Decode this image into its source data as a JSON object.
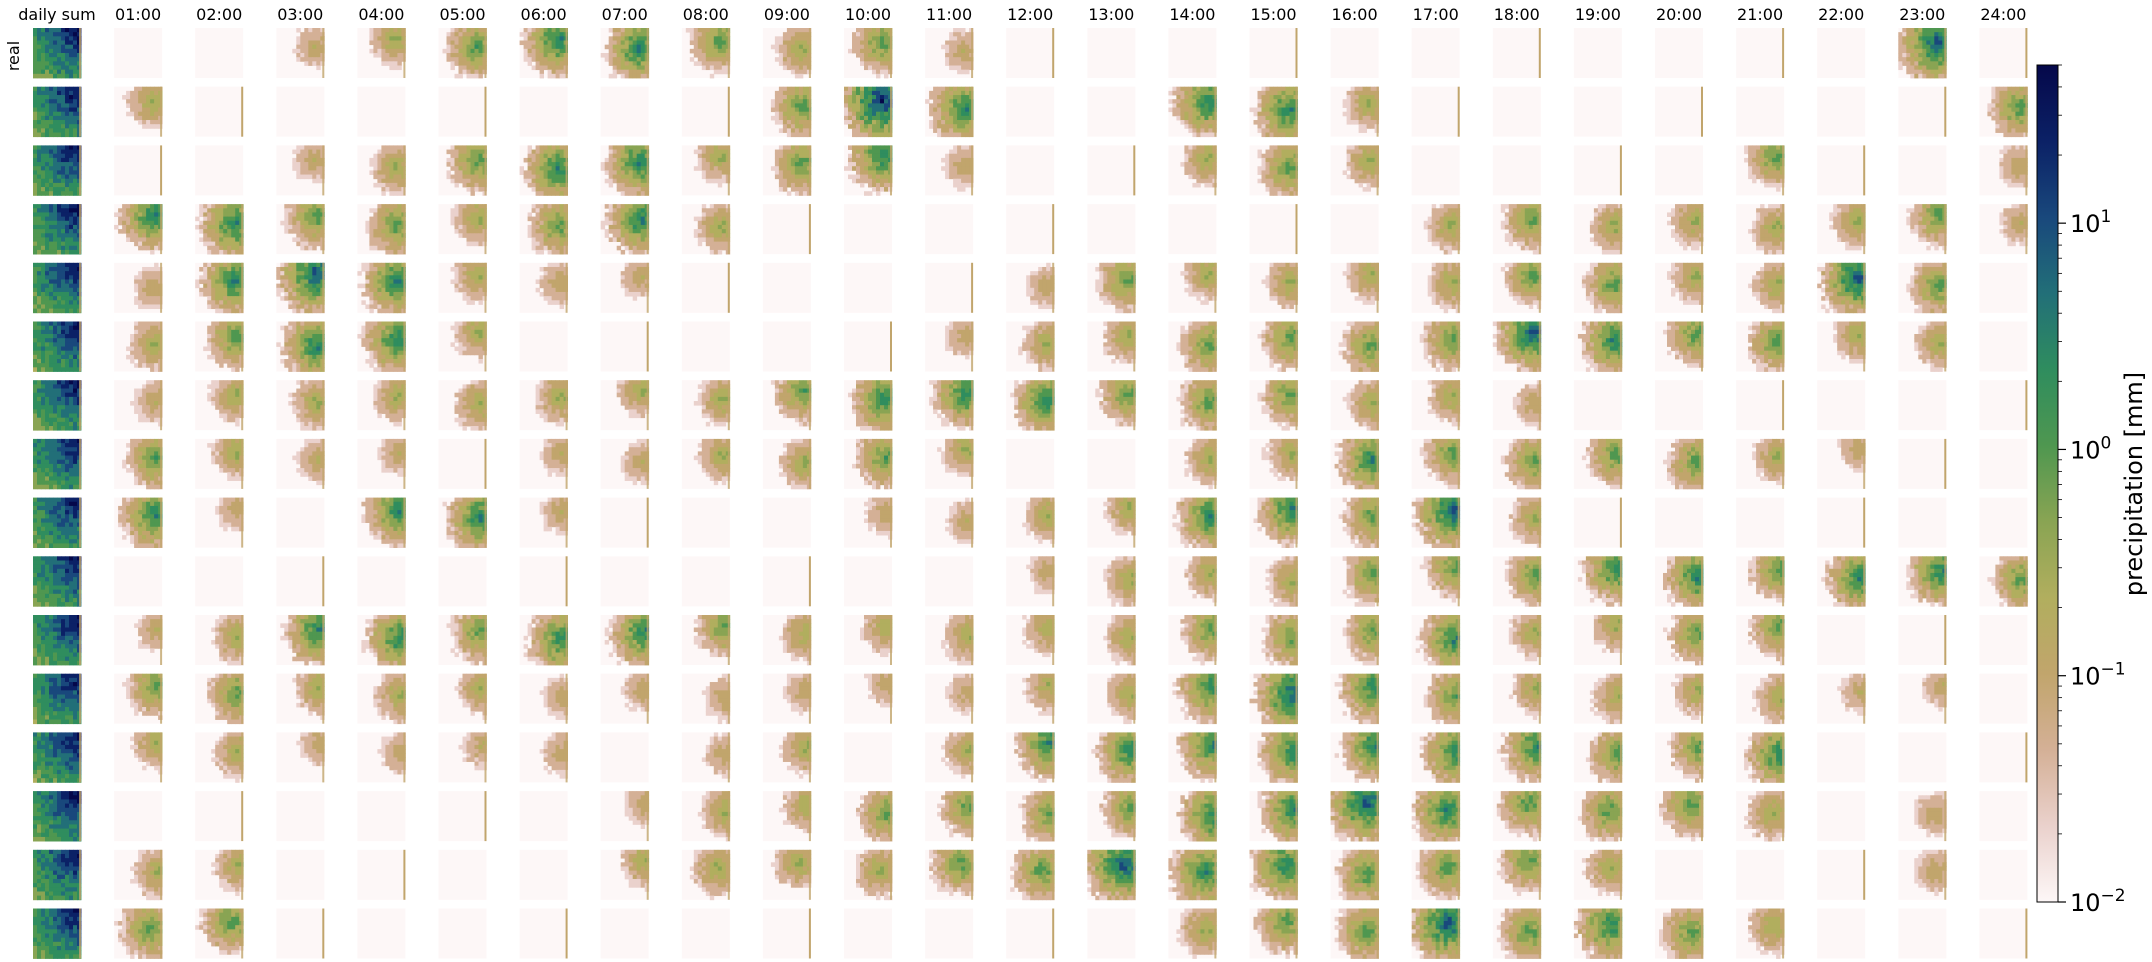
{
  "chart_data": {
    "type": "heatmap",
    "title": "",
    "column_labels": [
      "daily sum",
      "01:00",
      "02:00",
      "03:00",
      "04:00",
      "05:00",
      "06:00",
      "07:00",
      "08:00",
      "09:00",
      "10:00",
      "11:00",
      "12:00",
      "13:00",
      "14:00",
      "15:00",
      "16:00",
      "17:00",
      "18:00",
      "19:00",
      "20:00",
      "21:00",
      "22:00",
      "23:00",
      "24:00"
    ],
    "row_labels": [
      "real",
      "",
      "",
      "",
      "",
      "",
      "",
      "",
      "",
      "",
      "",
      "",
      "",
      "",
      "",
      ""
    ],
    "colorbar": {
      "label": "precipitation [mm]",
      "scale": "log",
      "range": [
        0.01,
        50
      ],
      "ticks": [
        {
          "value": 0.01,
          "base": "10",
          "exp": "−2"
        },
        {
          "value": 0.1,
          "base": "10",
          "exp": "−1"
        },
        {
          "value": 1,
          "base": "10",
          "exp": "0"
        },
        {
          "value": 10,
          "base": "10",
          "exp": "1"
        }
      ],
      "colors": [
        "#fdf7f7",
        "#ead1cc",
        "#d4b096",
        "#c1a56c",
        "#b1ae5e",
        "#89a453",
        "#4f9750",
        "#2f8d5e",
        "#226f78",
        "#19487c",
        "#0b2166",
        "#05084a"
      ]
    },
    "intensity_rows": [
      [
        9,
        1,
        1,
        2,
        3,
        4,
        5,
        5,
        4,
        3,
        4,
        2,
        1,
        1,
        1,
        1,
        1,
        1,
        1,
        1,
        1,
        1,
        1,
        6,
        1
      ],
      [
        9,
        3,
        1,
        1,
        1,
        1,
        1,
        1,
        1,
        4,
        7,
        5,
        1,
        1,
        5,
        5,
        3,
        1,
        1,
        1,
        1,
        1,
        1,
        1,
        4
      ],
      [
        9,
        1,
        1,
        2,
        3,
        4,
        5,
        5,
        3,
        4,
        5,
        2,
        1,
        1,
        3,
        4,
        3,
        1,
        1,
        1,
        1,
        4,
        1,
        1,
        2
      ],
      [
        9,
        5,
        5,
        4,
        4,
        3,
        4,
        5,
        3,
        1,
        1,
        1,
        1,
        1,
        1,
        1,
        1,
        3,
        4,
        3,
        3,
        3,
        3,
        4,
        2
      ],
      [
        9,
        2,
        5,
        6,
        5,
        3,
        2,
        2,
        1,
        1,
        1,
        1,
        2,
        4,
        3,
        3,
        3,
        3,
        4,
        4,
        3,
        3,
        6,
        4,
        1
      ],
      [
        9,
        3,
        4,
        5,
        5,
        3,
        1,
        1,
        1,
        1,
        1,
        2,
        3,
        3,
        4,
        4,
        4,
        4,
        6,
        5,
        4,
        4,
        3,
        3,
        1
      ],
      [
        9,
        2,
        3,
        3,
        3,
        3,
        3,
        3,
        3,
        4,
        5,
        5,
        5,
        4,
        4,
        4,
        3,
        3,
        2,
        1,
        1,
        1,
        1,
        1,
        1
      ],
      [
        9,
        4,
        3,
        2,
        2,
        1,
        2,
        2,
        3,
        3,
        4,
        3,
        1,
        1,
        3,
        3,
        5,
        4,
        4,
        4,
        4,
        3,
        2,
        1,
        1
      ],
      [
        9,
        5,
        2,
        1,
        5,
        5,
        2,
        1,
        1,
        1,
        2,
        2,
        3,
        3,
        5,
        5,
        4,
        6,
        3,
        1,
        1,
        1,
        1,
        1,
        1
      ],
      [
        9,
        1,
        1,
        1,
        1,
        1,
        1,
        1,
        1,
        1,
        1,
        1,
        2,
        3,
        3,
        3,
        4,
        4,
        4,
        5,
        5,
        4,
        5,
        5,
        4
      ],
      [
        9,
        2,
        3,
        5,
        5,
        4,
        5,
        5,
        4,
        3,
        3,
        3,
        3,
        3,
        4,
        4,
        4,
        5,
        3,
        3,
        4,
        4,
        1,
        1,
        1
      ],
      [
        9,
        4,
        4,
        3,
        3,
        3,
        2,
        2,
        2,
        2,
        2,
        2,
        3,
        3,
        5,
        6,
        5,
        4,
        3,
        3,
        3,
        3,
        2,
        2,
        1
      ],
      [
        9,
        3,
        3,
        2,
        2,
        2,
        2,
        1,
        2,
        3,
        1,
        3,
        5,
        5,
        5,
        5,
        5,
        5,
        5,
        4,
        4,
        5,
        1,
        1,
        1
      ],
      [
        9,
        1,
        1,
        1,
        1,
        1,
        1,
        2,
        3,
        3,
        4,
        4,
        4,
        4,
        5,
        5,
        6,
        5,
        4,
        4,
        4,
        3,
        1,
        2,
        1
      ],
      [
        9,
        3,
        3,
        1,
        1,
        1,
        1,
        3,
        3,
        3,
        3,
        4,
        4,
        6,
        5,
        5,
        4,
        4,
        4,
        3,
        1,
        1,
        1,
        2,
        1
      ],
      [
        9,
        4,
        4,
        1,
        1,
        1,
        1,
        1,
        1,
        1,
        1,
        1,
        1,
        1,
        3,
        4,
        4,
        6,
        4,
        5,
        4,
        3,
        1,
        1,
        1
      ]
    ]
  }
}
